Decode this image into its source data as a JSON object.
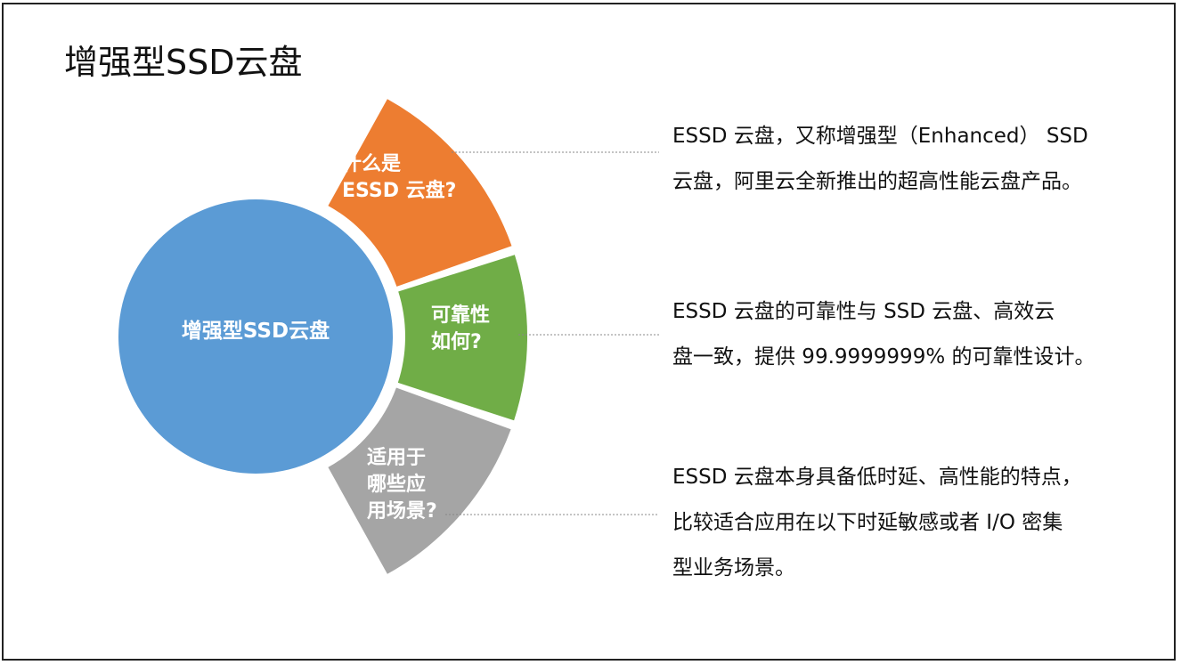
{
  "title": "增强型SSD云盘",
  "center": {
    "label": "增强型SSD云盘",
    "color": "#5b9bd5"
  },
  "segments": [
    {
      "lines": [
        "什么是",
        "ESSD 云盘?"
      ],
      "color": "#ed7d31"
    },
    {
      "lines": [
        "可靠性",
        "如何?"
      ],
      "color": "#70ad47"
    },
    {
      "lines": [
        "适用于",
        "哪些应",
        "用场景?"
      ],
      "color": "#a5a5a5"
    }
  ],
  "descriptions": [
    {
      "lines": [
        "ESSD 云盘，又称增强型（Enhanced） SSD",
        "云盘，阿里云全新推出的超高性能云盘产品。"
      ]
    },
    {
      "lines": [
        "ESSD 云盘的可靠性与 SSD 云盘、高效云",
        "盘一致，提供 99.9999999% 的可靠性设计。"
      ]
    },
    {
      "lines": [
        "ESSD 云盘本身具备低时延、高性能的特点，",
        "比较适合应用在以下时延敏感或者 I/O 密集",
        "型业务场景。"
      ]
    }
  ]
}
